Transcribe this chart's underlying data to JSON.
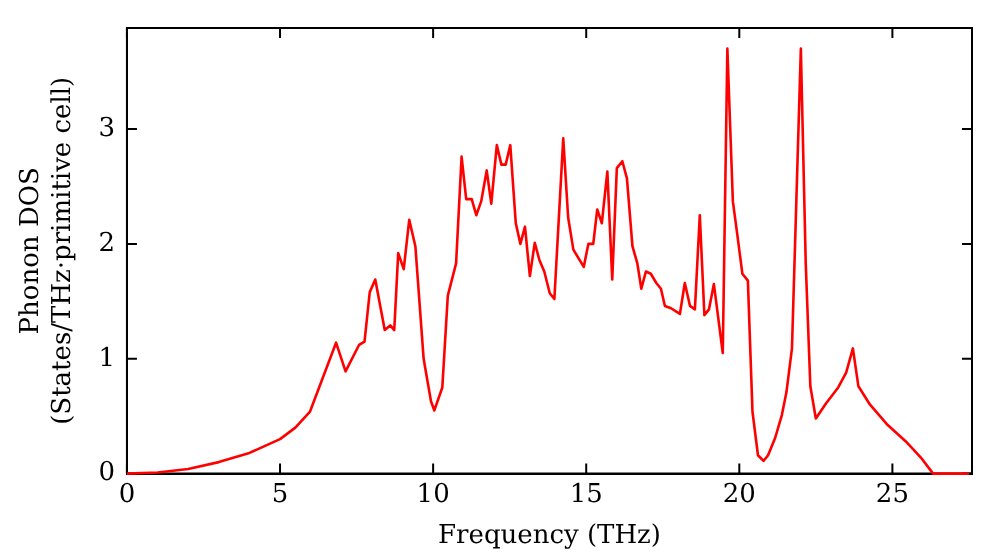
{
  "chart_data": {
    "type": "line",
    "xlabel": "Frequency (THz)",
    "ylabel": "Phonon DOS\n(States/THz·primitive cell)",
    "x": [
      0,
      1,
      2,
      3,
      4,
      5,
      5.5,
      5.98,
      6.83,
      7.14,
      7.58,
      7.76,
      7.93,
      8.11,
      8.42,
      8.6,
      8.73,
      8.86,
      9.04,
      9.22,
      9.42,
      9.69,
      9.93,
      10.04,
      10.3,
      10.48,
      10.75,
      10.93,
      11.08,
      11.26,
      11.41,
      11.57,
      11.75,
      11.9,
      12.08,
      12.23,
      12.37,
      12.52,
      12.7,
      12.85,
      13.0,
      13.16,
      13.32,
      13.47,
      13.63,
      13.81,
      13.96,
      14.25,
      14.41,
      14.58,
      14.92,
      15.07,
      15.23,
      15.36,
      15.51,
      15.69,
      15.85,
      16.0,
      16.18,
      16.33,
      16.51,
      16.67,
      16.8,
      16.95,
      17.11,
      17.29,
      17.44,
      17.57,
      17.77,
      18.06,
      18.22,
      18.39,
      18.55,
      18.71,
      18.86,
      19.01,
      19.17,
      19.46,
      19.61,
      19.79,
      19.94,
      20.1,
      20.28,
      20.43,
      20.61,
      20.79,
      20.94,
      21.17,
      21.39,
      21.54,
      21.72,
      22.01,
      22.17,
      22.32,
      22.5,
      22.83,
      23.23,
      23.49,
      23.71,
      23.89,
      24.27,
      24.82,
      25.44,
      25.93,
      26.33,
      27.5
    ],
    "series": [
      {
        "color": "#ff0000",
        "values": [
          0,
          0.01,
          0.04,
          0.1,
          0.18,
          0.3,
          0.4,
          0.54,
          1.14,
          0.89,
          1.12,
          1.15,
          1.58,
          1.69,
          1.25,
          1.29,
          1.25,
          1.92,
          1.78,
          2.21,
          1.98,
          1.0,
          0.63,
          0.55,
          0.75,
          1.55,
          1.83,
          2.76,
          2.39,
          2.39,
          2.25,
          2.37,
          2.64,
          2.35,
          2.86,
          2.69,
          2.69,
          2.86,
          2.18,
          2.0,
          2.15,
          1.72,
          2.01,
          1.86,
          1.76,
          1.57,
          1.52,
          2.92,
          2.23,
          1.95,
          1.8,
          2.0,
          2.0,
          2.3,
          2.18,
          2.63,
          1.69,
          2.66,
          2.72,
          2.57,
          1.98,
          1.83,
          1.61,
          1.76,
          1.74,
          1.66,
          1.61,
          1.46,
          1.44,
          1.39,
          1.66,
          1.46,
          1.43,
          2.25,
          1.38,
          1.43,
          1.65,
          1.05,
          3.7,
          2.37,
          2.07,
          1.74,
          1.68,
          0.54,
          0.16,
          0.11,
          0.16,
          0.31,
          0.51,
          0.71,
          1.09,
          3.7,
          1.83,
          0.76,
          0.48,
          0.61,
          0.75,
          0.88,
          1.09,
          0.76,
          0.6,
          0.43,
          0.28,
          0.14,
          0,
          0
        ]
      }
    ],
    "xlim": [
      0,
      27.6
    ],
    "ylim": [
      0,
      3.88
    ],
    "xticks": [
      0,
      5,
      10,
      15,
      20,
      25
    ],
    "yticks": [
      0,
      1,
      2,
      3
    ],
    "grid": false,
    "legend": false,
    "marker": "none",
    "line_style": "solid"
  }
}
